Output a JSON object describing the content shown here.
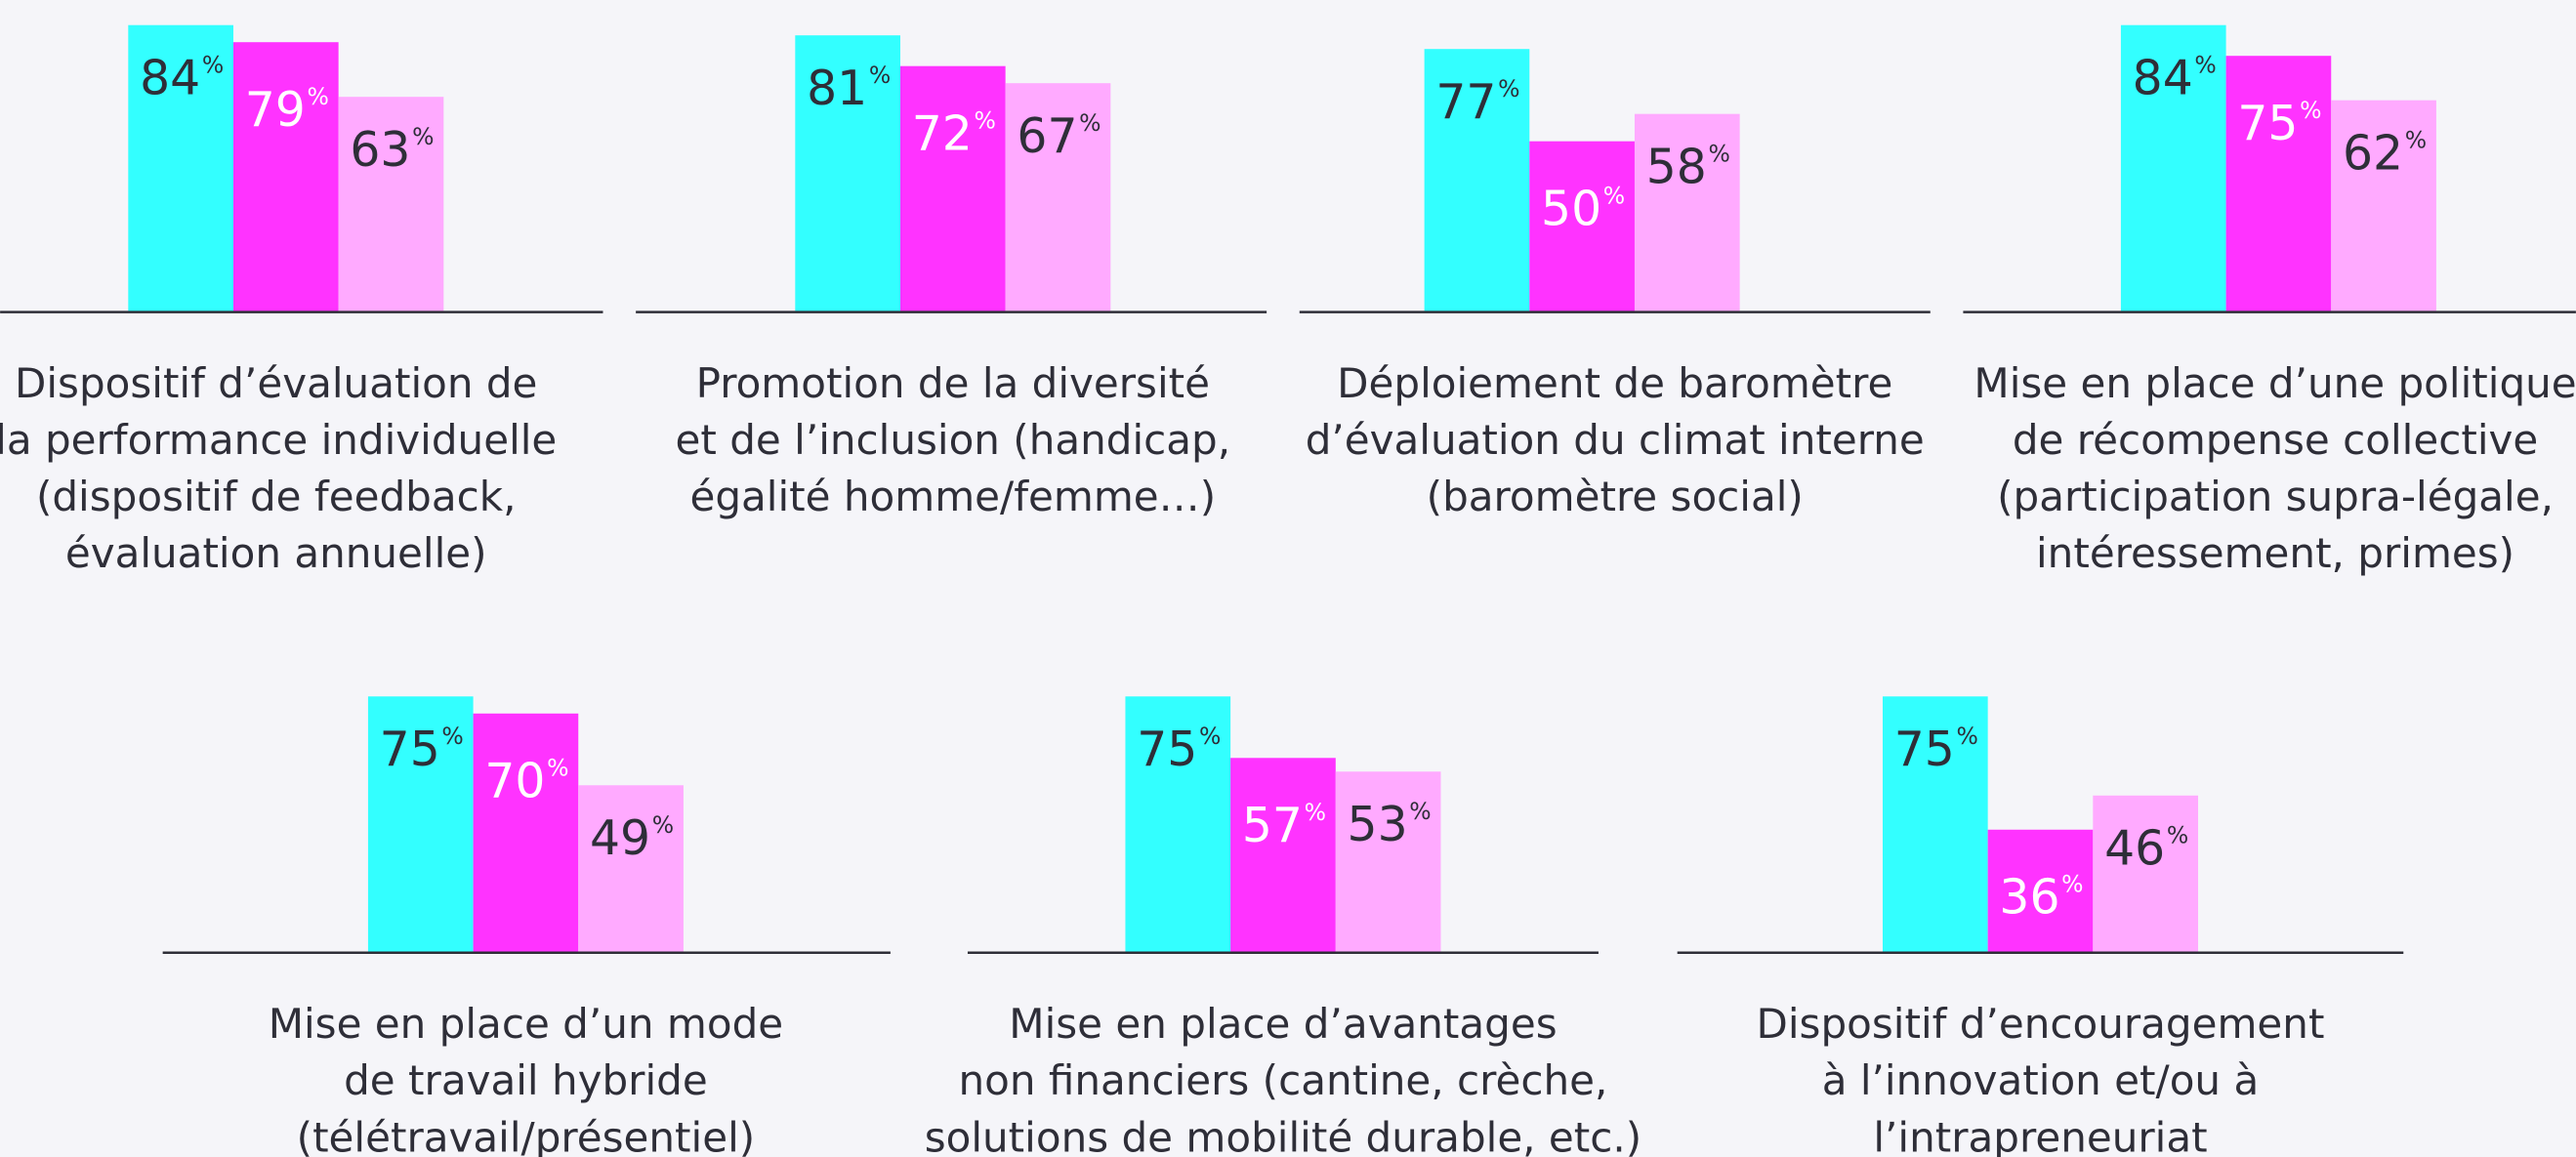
{
  "chart_data": [
    {
      "type": "bar",
      "title": [
        "Dispositif d’évaluation de",
        "la performance individuelle",
        "(dispositif de feedback,",
        "évaluation annuelle)"
      ],
      "values": [
        84,
        79,
        63
      ],
      "colors": [
        "#33ffff",
        "#ff33ff",
        "#ffaaff"
      ],
      "unit": "%"
    },
    {
      "type": "bar",
      "title": [
        "Promotion de la diversité",
        "et de l’inclusion (handicap,",
        "égalité homme/femme…)"
      ],
      "values": [
        81,
        72,
        67
      ],
      "colors": [
        "#33ffff",
        "#ff33ff",
        "#ffaaff"
      ],
      "unit": "%"
    },
    {
      "type": "bar",
      "title": [
        "Déploiement de baromètre",
        "d’évaluation du climat interne",
        "(baromètre social)"
      ],
      "values": [
        77,
        50,
        58
      ],
      "colors": [
        "#33ffff",
        "#ff33ff",
        "#ffaaff"
      ],
      "unit": "%"
    },
    {
      "type": "bar",
      "title": [
        "Mise en place d’une politique",
        "de récompense collective",
        "(participation supra-légale,",
        "intéressement, primes)"
      ],
      "values": [
        84,
        75,
        62
      ],
      "colors": [
        "#33ffff",
        "#ff33ff",
        "#ffaaff"
      ],
      "unit": "%"
    },
    {
      "type": "bar",
      "title": [
        "Mise en place d’un mode",
        "de travail hybride",
        "(télétravail/présentiel)"
      ],
      "values": [
        75,
        70,
        49
      ],
      "colors": [
        "#33ffff",
        "#ff33ff",
        "#ffaaff"
      ],
      "unit": "%"
    },
    {
      "type": "bar",
      "title": [
        "Mise en place d’avantages",
        "non financiers (cantine, crèche,",
        "solutions de mobilité durable, etc.)"
      ],
      "values": [
        75,
        57,
        53
      ],
      "colors": [
        "#33ffff",
        "#ff33ff",
        "#ffaaff"
      ],
      "unit": "%"
    },
    {
      "type": "bar",
      "title": [
        "Dispositif d’encouragement",
        "à l’innovation et/ou à",
        "l’intrapreneuriat"
      ],
      "values": [
        75,
        36,
        46
      ],
      "colors": [
        "#33ffff",
        "#ff33ff",
        "#ffaaff"
      ],
      "unit": "%"
    }
  ]
}
